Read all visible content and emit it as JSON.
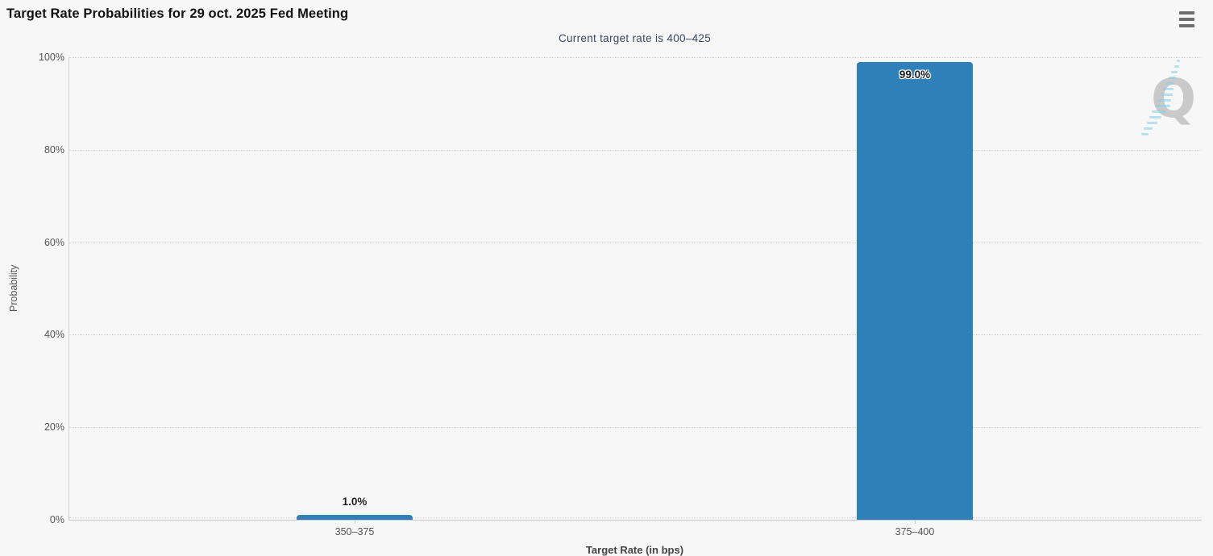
{
  "header": {
    "title": "Target Rate Probabilities for 29 oct. 2025 Fed Meeting",
    "subtitle": "Current target rate is 400–425",
    "menu_icon": "hamburger-icon"
  },
  "chart_data": {
    "type": "bar",
    "title": "Target Rate Probabilities for 29 oct. 2025 Fed Meeting",
    "subtitle": "Current target rate is 400–425",
    "categories": [
      "350–375",
      "375–400"
    ],
    "values": [
      1.0,
      99.0
    ],
    "value_labels": [
      "1.0%",
      "99.0%"
    ],
    "xlabel": "Target Rate (in bps)",
    "ylabel": "Probability",
    "ylim": [
      0,
      100
    ],
    "yticks": [
      0,
      20,
      40,
      60,
      80,
      100
    ],
    "ytick_labels": [
      "0%",
      "20%",
      "40%",
      "60%",
      "80%",
      "100%"
    ],
    "grid": "horizontal-dotted",
    "legend": "none",
    "bar_color": "#2e80b9"
  },
  "colors": {
    "background": "#f7f7f7",
    "bar": "#2e80b9",
    "axis_line": "#cccccc",
    "grid_dot": "#d7d7d7",
    "tick_label": "#555555",
    "title_text": "#111111",
    "subtitle_text": "#3a4664",
    "menu_icon": "#6f6f6f",
    "watermark_gray": "#969696",
    "watermark_blue": "#82cde4"
  },
  "watermark": {
    "name": "quikstrike-logo",
    "letter": "Q"
  }
}
